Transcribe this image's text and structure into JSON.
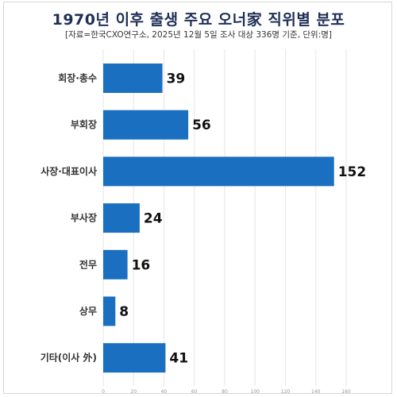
{
  "chart_data": {
    "type": "bar",
    "orientation": "horizontal",
    "title": "1970년 이후 출생 주요 오너家 직위별 분포",
    "subtitle": "[자료=한국CXO연구소, 2025년 12월 5일 조사 대상 336명 기준, 단위:명]",
    "categories": [
      "회장·총수",
      "부회장",
      "사장·대표이사",
      "부사장",
      "전무",
      "상무",
      "기타(이사 外)"
    ],
    "values": [
      39,
      56,
      152,
      24,
      16,
      8,
      41
    ],
    "xlim": [
      0,
      160
    ],
    "x_ticks": [
      "0",
      "20",
      "40",
      "60",
      "80",
      "100",
      "120",
      "140",
      "160"
    ],
    "grid": true,
    "colors": {
      "bar": "#1a6fc1",
      "grid": "#e6e6e6",
      "title": "#1f2f56"
    }
  }
}
